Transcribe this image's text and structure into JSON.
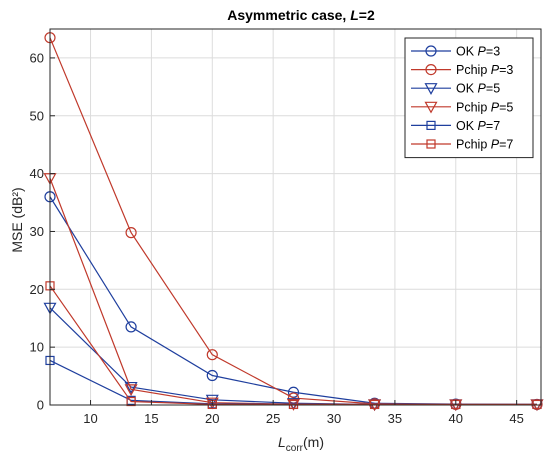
{
  "chart_data": {
    "type": "line",
    "title": "Asymmetric case, L=2",
    "title_main": "Asymmetric case, ",
    "title_italic": "L",
    "title_tail": "=2",
    "xlabel_main": "L",
    "xlabel_sub": "corr",
    "xlabel_unit": "(m)",
    "ylabel": "MSE (dB²)",
    "xlim": [
      6.67,
      47
    ],
    "ylim": [
      0,
      65
    ],
    "xticks": [
      10,
      15,
      20,
      25,
      30,
      35,
      40,
      45
    ],
    "yticks": [
      0,
      10,
      20,
      30,
      40,
      50,
      60
    ],
    "grid": true,
    "legend_position": "top-right",
    "x": [
      6.67,
      13.33,
      20,
      26.67,
      33.33,
      40,
      46.67
    ],
    "series": [
      {
        "name": "OK P=3",
        "name_main": "OK ",
        "name_italic": "P",
        "name_tail": "=3",
        "color": "#1f3f9e",
        "marker": "circle",
        "values": [
          36.0,
          13.5,
          5.1,
          2.2,
          0.3,
          0.15,
          0.1
        ]
      },
      {
        "name": "Pchip P=3",
        "name_main": "Pchip ",
        "name_italic": "P",
        "name_tail": "=3",
        "color": "#c0392b",
        "marker": "circle",
        "values": [
          63.5,
          29.8,
          8.7,
          1.2,
          0.2,
          0.1,
          0.1
        ]
      },
      {
        "name": "OK P=5",
        "name_main": "OK ",
        "name_italic": "P",
        "name_tail": "=5",
        "color": "#1f3f9e",
        "marker": "triangle-down",
        "values": [
          16.8,
          3.1,
          0.9,
          0.3,
          0.1,
          0.1,
          0.1
        ]
      },
      {
        "name": "Pchip P=5",
        "name_main": "Pchip ",
        "name_italic": "P",
        "name_tail": "=5",
        "color": "#c0392b",
        "marker": "triangle-down",
        "values": [
          39.2,
          2.7,
          0.4,
          0.15,
          0.1,
          0.1,
          0.1
        ]
      },
      {
        "name": "OK P=7",
        "name_main": "OK ",
        "name_italic": "P",
        "name_tail": "=7",
        "color": "#1f3f9e",
        "marker": "square",
        "values": [
          7.7,
          0.8,
          0.2,
          0.1,
          0.1,
          0.1,
          0.1
        ]
      },
      {
        "name": "Pchip P=7",
        "name_main": "Pchip ",
        "name_italic": "P",
        "name_tail": "=7",
        "color": "#c0392b",
        "marker": "square",
        "values": [
          20.6,
          0.6,
          0.1,
          0.1,
          0.1,
          0.1,
          0.1
        ]
      }
    ]
  }
}
